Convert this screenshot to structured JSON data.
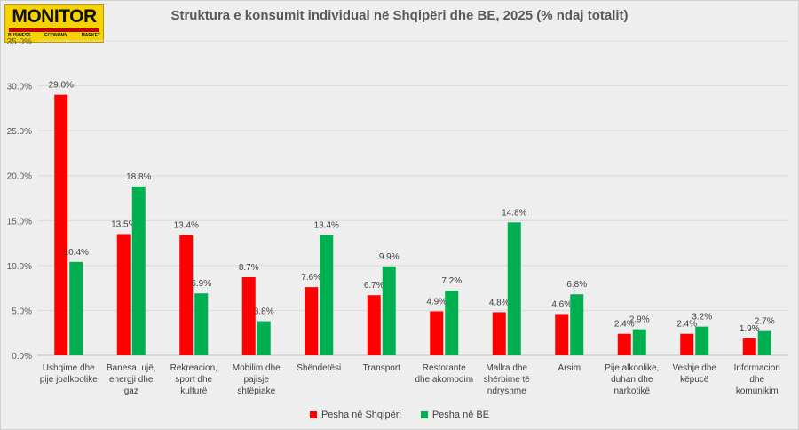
{
  "logo": {
    "name": "MONITOR",
    "tagline": [
      "BUSINESS",
      "ECONOMY",
      "MARKET"
    ]
  },
  "chart_data": {
    "type": "bar",
    "title": "Struktura e konsumit individual në Shqipëri dhe BE, 2025 (% ndaj totalit)",
    "categories": [
      [
        "Ushqime dhe",
        "pije joalkoolike"
      ],
      [
        "Banesa, ujë,",
        "energji dhe",
        "gaz"
      ],
      [
        "Rekreacion,",
        "sport dhe",
        "kulturë"
      ],
      [
        "Mobilim dhe",
        "pajisje",
        "shtëpiake"
      ],
      [
        "Shëndetësi"
      ],
      [
        "Transport"
      ],
      [
        "Restorante",
        "dhe akomodim"
      ],
      [
        "Mallra dhe",
        "shërbime të",
        "ndryshme"
      ],
      [
        "Arsim"
      ],
      [
        "Pije alkoolike,",
        "duhan dhe",
        "narkotikë"
      ],
      [
        "Veshje dhe",
        "këpucë"
      ],
      [
        "Informacion",
        "dhe",
        "komunikim"
      ]
    ],
    "series": [
      {
        "name": "Pesha në Shqipëri",
        "color": "#ff0000",
        "values": [
          29.0,
          13.5,
          13.4,
          8.7,
          7.6,
          6.7,
          4.9,
          4.8,
          4.6,
          2.4,
          2.4,
          1.9
        ],
        "labels": [
          "29.0%",
          "13.5%",
          "13.4%",
          "8.7%",
          "7.6%",
          "6.7%",
          "4.9%",
          "4.8%",
          "4.6%",
          "2.4%",
          "2.4%",
          "1.9%"
        ]
      },
      {
        "name": "Pesha në BE",
        "color": "#00b050",
        "values": [
          10.4,
          18.8,
          6.9,
          3.8,
          13.4,
          9.9,
          7.2,
          14.8,
          6.8,
          2.9,
          3.2,
          2.7
        ],
        "labels": [
          "10.4%",
          "18.8%",
          "6.9%",
          "3.8%",
          "13.4%",
          "9.9%",
          "7.2%",
          "14.8%",
          "6.8%",
          "2.9%",
          "3.2%",
          "2.7%"
        ]
      }
    ],
    "ylim": [
      0,
      35
    ],
    "yticks": [
      0,
      5,
      10,
      15,
      20,
      25,
      30,
      35
    ],
    "ytick_labels": [
      "0.0%",
      "5.0%",
      "10.0%",
      "15.0%",
      "20.0%",
      "25.0%",
      "30.0%",
      "35.0%"
    ],
    "grid": true,
    "legend_position": "bottom"
  }
}
